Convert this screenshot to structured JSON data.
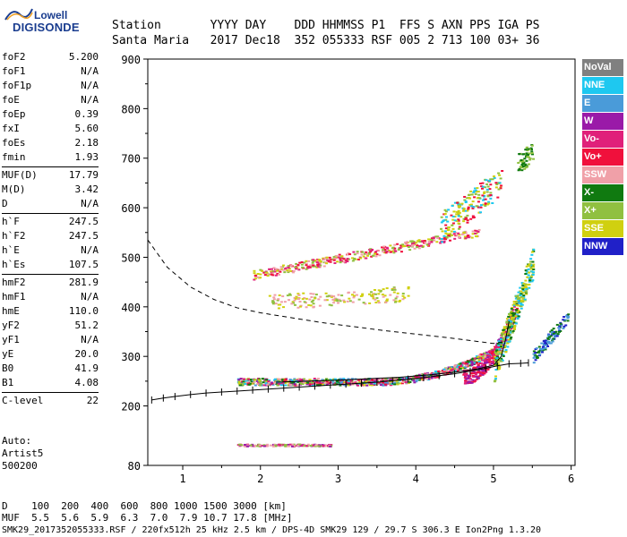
{
  "logo": {
    "line1": "Lowell",
    "line2": "DIGISONDE"
  },
  "header": {
    "labels": "Station       YYYY DAY    DDD HHMMSS P1  FFS S AXN PPS IGA PS",
    "values": "Santa Maria   2017 Dec18  352 055333 RSF 005 2 713 100 03+ 36"
  },
  "params": [
    [
      [
        "foF2",
        "5.200"
      ],
      [
        "foF1",
        "N/A"
      ],
      [
        "foF1p",
        "N/A"
      ],
      [
        "foE",
        "N/A"
      ],
      [
        "foEp",
        "0.39"
      ],
      [
        "fxI",
        "5.60"
      ],
      [
        "foEs",
        "2.18"
      ],
      [
        "fmin",
        "1.93"
      ]
    ],
    [
      [
        "MUF(D)",
        "17.79"
      ],
      [
        "M(D)",
        "3.42"
      ],
      [
        "D",
        "N/A"
      ]
    ],
    [
      [
        "h`F",
        "247.5"
      ],
      [
        "h`F2",
        "247.5"
      ],
      [
        "h`E",
        "N/A"
      ],
      [
        "h`Es",
        "107.5"
      ]
    ],
    [
      [
        "hmF2",
        "281.9"
      ],
      [
        "hmF1",
        "N/A"
      ],
      [
        "hmE",
        "110.0"
      ],
      [
        "yF2",
        "51.2"
      ],
      [
        "yF1",
        "N/A"
      ],
      [
        "yE",
        "20.0"
      ],
      [
        "B0",
        "41.9"
      ],
      [
        "B1",
        "4.08"
      ]
    ],
    [
      [
        "C-level",
        "22"
      ]
    ]
  ],
  "auto": [
    "Auto:",
    "Artist5",
    "500200"
  ],
  "legend": [
    {
      "label": "NoVal",
      "color": "#808080"
    },
    {
      "label": "NNE",
      "color": "#1ec8f0"
    },
    {
      "label": "E",
      "color": "#4a9bd9"
    },
    {
      "label": "W",
      "color": "#9a1aa8"
    },
    {
      "label": "Vo-",
      "color": "#e0207a"
    },
    {
      "label": "Vo+",
      "color": "#f0103c"
    },
    {
      "label": "SSW",
      "color": "#f0a0a8"
    },
    {
      "label": "X-",
      "color": "#107a10"
    },
    {
      "label": "X+",
      "color": "#90c040"
    },
    {
      "label": "SSE",
      "color": "#d0d010"
    },
    {
      "label": "NNW",
      "color": "#2020c8"
    }
  ],
  "chart_data": {
    "type": "scatter",
    "xlim": [
      0.55,
      6.05
    ],
    "ylim": [
      80,
      900
    ],
    "xticks": [
      1,
      2,
      3,
      4,
      5,
      6
    ],
    "yticks": [
      80,
      200,
      300,
      400,
      500,
      600,
      700,
      800,
      900
    ],
    "series": [
      {
        "kind": "profile_ticks",
        "color": "#000000",
        "x": [
          0.6,
          0.75,
          0.9,
          1.1,
          1.3,
          1.5,
          1.7,
          1.9,
          2.1,
          2.3,
          2.5,
          2.7,
          2.9,
          3.1,
          3.3,
          3.5,
          3.7,
          3.9,
          4.1,
          4.3,
          4.5,
          4.7,
          4.9,
          5.05,
          5.2,
          5.35,
          5.45
        ],
        "y": [
          212,
          216,
          219,
          223,
          226,
          228,
          230,
          232,
          234,
          236,
          238,
          240,
          242,
          244,
          246,
          248,
          251,
          254,
          257,
          261,
          265,
          270,
          276,
          281,
          285,
          286,
          287
        ]
      },
      {
        "kind": "dashed",
        "color": "#000000",
        "x": [
          0.55,
          0.8,
          1.1,
          1.4,
          1.7,
          2.0,
          2.4,
          2.8,
          3.2,
          3.6,
          4.0,
          4.4,
          4.8,
          5.0,
          5.15
        ],
        "y": [
          535,
          480,
          440,
          415,
          398,
          388,
          378,
          368,
          360,
          352,
          345,
          338,
          330,
          326,
          330
        ]
      },
      {
        "kind": "solid",
        "color": "#000000",
        "x": [
          2.2,
          2.6,
          3.0,
          3.4,
          3.8,
          4.2,
          4.5,
          4.8,
          5.0,
          5.1,
          5.15,
          5.2
        ],
        "y": [
          248,
          250,
          252,
          255,
          258,
          263,
          268,
          275,
          282,
          300,
          330,
          370
        ]
      }
    ]
  },
  "bottom": {
    "row_d": "D    100  200  400  600  800 1000 1500 3000 [km]",
    "row_muf": "MUF  5.5  5.6  5.9  6.3  7.0  7.9 10.7 17.8 [MHz]"
  },
  "footer": "SMK29_2017352055333.RSF / 220fx512h 25 kHz 2.5 km / DPS-4D SMK29 129 / 29.7 S 306.3 E Ion2Png 1.3.20"
}
